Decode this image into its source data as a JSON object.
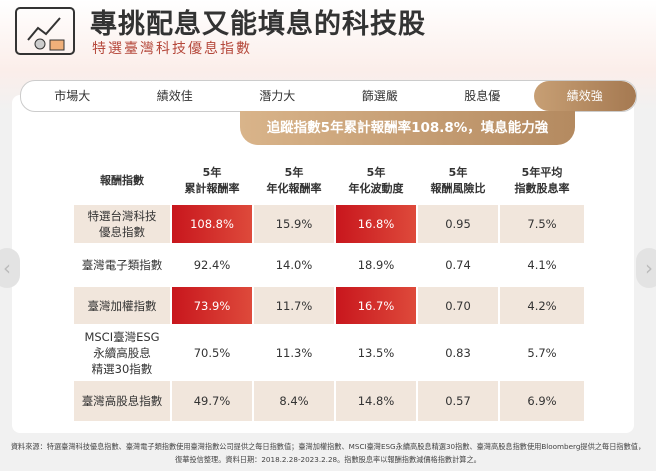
{
  "header": {
    "title": "專挑配息又能填息的科技股",
    "subtitle": "特選臺灣科技優息指數"
  },
  "tabs": {
    "items": [
      "市場大",
      "績效佳",
      "潛力大",
      "篩選嚴",
      "股息優",
      "績效強"
    ],
    "active": 5
  },
  "banner": "追蹤指數5年累計報酬率108.8%，填息能力強",
  "table": {
    "columns": [
      "報酬指數",
      "5年\n累計報酬率",
      "5年\n年化報酬率",
      "5年\n年化波動度",
      "5年\n報酬風險比",
      "5年平均\n指數股息率"
    ],
    "rows": [
      [
        "特選台灣科技\n優息指數",
        "108.8%",
        "15.9%",
        "16.8%",
        "0.95",
        "7.5%"
      ],
      [
        "臺灣電子類指數",
        "92.4%",
        "14.0%",
        "18.9%",
        "0.74",
        "4.1%"
      ],
      [
        "臺灣加權指數",
        "73.9%",
        "11.7%",
        "16.7%",
        "0.70",
        "4.2%"
      ],
      [
        "MSCI臺灣ESG\n永續高股息\n精選30指數",
        "70.5%",
        "11.3%",
        "13.5%",
        "0.83",
        "5.7%"
      ],
      [
        "臺灣高股息指數",
        "49.7%",
        "8.4%",
        "14.8%",
        "0.57",
        "6.9%"
      ]
    ],
    "highlight": [
      [
        0,
        1
      ],
      [
        0,
        3
      ],
      [
        2,
        1
      ],
      [
        2,
        3
      ]
    ]
  },
  "footnote": "資料來源：特選臺灣科技優息指數、臺灣電子類指數使用臺灣指數公司提供之每日指數值；臺灣加權指數、MSCI臺灣ESG永續高股息精選30指數、臺灣高股息指數使用Bloomberg提供之每日指數值，\n復華投信整理。資料日期：2018.2.28-2023.2.28。指數股息率以報酬指數減價格指數計算之。"
}
